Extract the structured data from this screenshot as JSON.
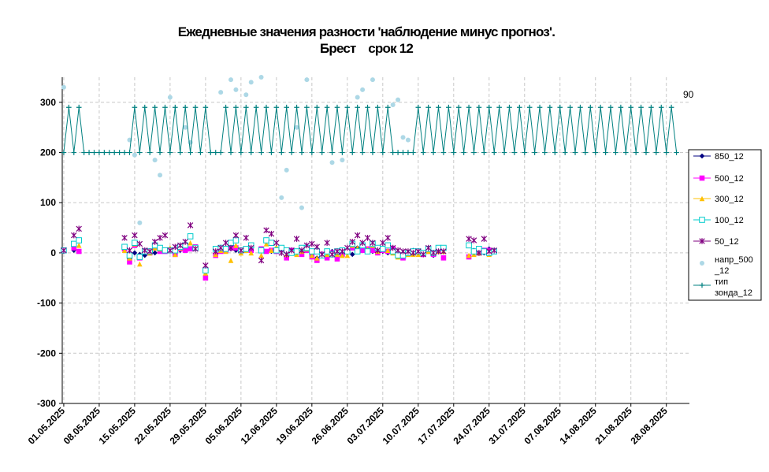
{
  "title_line1": "Ежедневные значения разности 'наблюдение минус прогноз'.",
  "title_line2": "Брест    срок 12",
  "chart_data": {
    "type": "scatter",
    "ylim": [
      -300,
      350
    ],
    "yticks": [
      -300,
      -200,
      -100,
      0,
      100,
      200,
      300
    ],
    "ytick_labels": [
      "-300",
      "-200",
      "-100",
      "0",
      "100",
      "200",
      "300"
    ],
    "xticks": [
      0,
      7,
      14,
      21,
      28,
      35,
      42,
      49,
      56,
      63,
      70,
      77,
      84,
      91,
      98,
      105,
      112,
      119
    ],
    "xtick_labels": [
      "01.05.2025",
      "08.05.2025",
      "15.05.2025",
      "22.05.2025",
      "29.05.2025",
      "05.06.2025",
      "12.06.2025",
      "19.06.2025",
      "26.06.2025",
      "03.07.2025",
      "10.07.2025",
      "17.07.2025",
      "24.07.2025",
      "31.07.2025",
      "07.08.2025",
      "14.08.2025",
      "21.08.2025",
      "28.08.2025"
    ],
    "xlim": [
      0,
      122
    ],
    "grid": true,
    "legend_position": "right",
    "annotation": "90",
    "series": [
      {
        "name": "850_12",
        "color": "#000080",
        "marker": "diamond",
        "values": [
          3,
          null,
          5,
          null,
          null,
          null,
          null,
          null,
          null,
          null,
          null,
          null,
          5,
          -12,
          0,
          -3,
          -5,
          0,
          0,
          8,
          null,
          5,
          -3,
          5,
          10,
          8,
          8,
          null,
          -48,
          null,
          -3,
          5,
          5,
          8,
          5,
          3,
          5,
          5,
          null,
          null,
          null,
          3,
          5,
          10,
          -10,
          3,
          3,
          5,
          8,
          -5,
          -10,
          -3,
          0,
          3,
          -3,
          0,
          3,
          -3,
          10,
          5,
          8,
          3,
          0,
          3,
          0,
          10,
          -5,
          -3,
          0,
          5,
          3,
          -3,
          5,
          -5,
          3,
          -10,
          null,
          null,
          null,
          null,
          -8,
          5,
          3,
          0,
          8,
          5,
          null,
          null,
          null,
          null,
          null,
          null,
          null,
          null,
          null,
          null,
          null,
          null,
          null,
          null,
          null,
          null,
          null,
          null,
          null,
          null,
          null,
          null,
          null,
          null,
          null,
          null,
          null,
          null,
          null,
          null,
          null
        ]
      },
      {
        "name": "500_12",
        "color": "#FF00FF",
        "marker": "square",
        "values": [
          5,
          null,
          10,
          3,
          null,
          null,
          null,
          null,
          null,
          null,
          null,
          null,
          8,
          -18,
          15,
          -10,
          3,
          0,
          10,
          3,
          3,
          5,
          -3,
          8,
          5,
          8,
          12,
          null,
          -50,
          null,
          -5,
          3,
          5,
          10,
          10,
          5,
          8,
          5,
          null,
          8,
          3,
          5,
          3,
          8,
          -10,
          5,
          3,
          -3,
          5,
          -8,
          -15,
          -3,
          -10,
          0,
          -12,
          -3,
          3,
          10,
          3,
          5,
          8,
          5,
          0,
          5,
          3,
          8,
          -5,
          -10,
          0,
          3,
          3,
          -3,
          3,
          -3,
          3,
          -10,
          null,
          null,
          null,
          null,
          -8,
          3,
          0,
          5,
          5,
          3,
          null,
          null,
          null,
          null,
          null,
          null,
          null,
          null,
          null,
          null,
          null,
          null,
          null,
          null,
          null,
          null,
          null,
          null,
          null,
          null,
          null,
          null,
          null,
          null,
          null,
          null,
          null,
          null,
          null,
          null,
          null
        ]
      },
      {
        "name": "300_12",
        "color": "#FFC000",
        "marker": "triangle",
        "values": [
          5,
          null,
          18,
          15,
          null,
          null,
          null,
          null,
          null,
          null,
          null,
          null,
          5,
          -10,
          18,
          -22,
          3,
          0,
          10,
          8,
          5,
          10,
          -3,
          10,
          15,
          20,
          10,
          null,
          -40,
          null,
          -3,
          5,
          3,
          -15,
          15,
          0,
          5,
          0,
          null,
          -5,
          18,
          5,
          12,
          10,
          -3,
          3,
          -3,
          3,
          8,
          -5,
          -10,
          -5,
          -3,
          -3,
          -3,
          -5,
          -5,
          15,
          10,
          15,
          8,
          15,
          3,
          10,
          5,
          0,
          -8,
          -5,
          -3,
          -3,
          -3,
          0,
          3,
          0,
          3,
          3,
          null,
          null,
          null,
          null,
          -5,
          -3,
          0,
          3,
          -3,
          3,
          null,
          null,
          null,
          null,
          null,
          null,
          null,
          null,
          null,
          null,
          null,
          null,
          null,
          null,
          null,
          null,
          null,
          null,
          null,
          null,
          null,
          null,
          null,
          null,
          null,
          null,
          null,
          null,
          null,
          null,
          null
        ]
      },
      {
        "name": "100_12",
        "color": "#00CCCC",
        "marker": "hollow-square",
        "values": [
          5,
          null,
          18,
          25,
          null,
          null,
          null,
          null,
          null,
          null,
          null,
          null,
          12,
          -5,
          20,
          -8,
          3,
          3,
          15,
          10,
          5,
          5,
          5,
          12,
          15,
          33,
          10,
          null,
          -35,
          null,
          8,
          10,
          8,
          20,
          25,
          5,
          8,
          15,
          null,
          5,
          25,
          20,
          5,
          10,
          5,
          0,
          3,
          10,
          10,
          3,
          3,
          -5,
          3,
          -3,
          3,
          5,
          3,
          18,
          3,
          15,
          3,
          18,
          10,
          8,
          15,
          3,
          -5,
          -5,
          0,
          3,
          3,
          0,
          8,
          0,
          10,
          10,
          null,
          null,
          null,
          null,
          15,
          3,
          8,
          3,
          0,
          3,
          null,
          null,
          null,
          null,
          null,
          null,
          null,
          null,
          null,
          null,
          null,
          null,
          null,
          null,
          null,
          null,
          null,
          null,
          null,
          null,
          null,
          null,
          null,
          null,
          null,
          null,
          null,
          null,
          null,
          null,
          null
        ]
      },
      {
        "name": "50_12",
        "color": "#800080",
        "marker": "star",
        "values": [
          5,
          null,
          35,
          48,
          null,
          null,
          null,
          null,
          null,
          null,
          null,
          null,
          30,
          5,
          35,
          18,
          5,
          3,
          22,
          30,
          35,
          5,
          12,
          15,
          22,
          55,
          8,
          null,
          -25,
          null,
          3,
          10,
          20,
          10,
          35,
          5,
          30,
          10,
          null,
          -15,
          45,
          38,
          20,
          0,
          -3,
          5,
          28,
          5,
          15,
          18,
          12,
          -3,
          20,
          -3,
          3,
          3,
          10,
          22,
          35,
          20,
          30,
          20,
          5,
          20,
          30,
          10,
          5,
          3,
          3,
          0,
          3,
          -3,
          10,
          0,
          3,
          3,
          null,
          null,
          null,
          null,
          28,
          25,
          0,
          28,
          3,
          5,
          null,
          null,
          null,
          null,
          null,
          null,
          null,
          null,
          null,
          null,
          null,
          null,
          null,
          null,
          null,
          null,
          null,
          null,
          null,
          null,
          null,
          null,
          null,
          null,
          null,
          null,
          null,
          null,
          null,
          null,
          null
        ]
      },
      {
        "name": "напр_500 _12",
        "color": "#ADD8E6",
        "marker": "circle",
        "values": [
          330,
          null,
          null,
          null,
          null,
          null,
          null,
          null,
          null,
          null,
          null,
          null,
          null,
          225,
          195,
          60,
          null,
          null,
          185,
          155,
          null,
          310,
          null,
          null,
          250,
          220,
          null,
          null,
          null,
          null,
          null,
          320,
          null,
          345,
          325,
          null,
          315,
          340,
          null,
          350,
          null,
          null,
          null,
          110,
          165,
          null,
          250,
          90,
          345,
          null,
          null,
          null,
          null,
          180,
          null,
          185,
          null,
          null,
          310,
          325,
          null,
          345,
          null,
          null,
          null,
          295,
          305,
          230,
          225,
          null,
          null,
          null,
          null,
          null,
          null,
          null,
          null,
          null,
          null,
          null,
          null,
          null,
          null,
          null,
          null,
          null,
          null,
          null,
          null,
          null,
          null,
          null,
          null,
          null,
          null,
          null,
          null,
          null,
          null,
          null,
          null,
          null,
          null,
          null,
          null,
          null,
          null,
          null,
          null,
          null,
          null,
          null,
          null,
          null,
          null,
          null,
          null,
          null,
          null,
          null,
          null
        ]
      },
      {
        "name": "тип зонда_12",
        "color": "#008080",
        "marker": "plus",
        "values": [
          200,
          290,
          200,
          290,
          200,
          200,
          200,
          200,
          200,
          200,
          200,
          200,
          200,
          200,
          290,
          200,
          290,
          200,
          290,
          200,
          290,
          200,
          290,
          200,
          290,
          200,
          290,
          200,
          290,
          200,
          200,
          200,
          290,
          200,
          290,
          200,
          290,
          200,
          290,
          200,
          290,
          200,
          290,
          200,
          290,
          200,
          290,
          200,
          290,
          200,
          290,
          200,
          290,
          200,
          290,
          200,
          290,
          200,
          290,
          200,
          290,
          200,
          290,
          200,
          290,
          200,
          200,
          200,
          200,
          200,
          290,
          200,
          290,
          200,
          290,
          200,
          290,
          200,
          290,
          200,
          290,
          200,
          290,
          200,
          290,
          200,
          290,
          200,
          290,
          200,
          290,
          200,
          290,
          200,
          290,
          200,
          290,
          200,
          290,
          200,
          290,
          200,
          290,
          200,
          290,
          200,
          290,
          200,
          290,
          200,
          290,
          200,
          290,
          200,
          290,
          200,
          290,
          200,
          290,
          200,
          290,
          200
        ]
      }
    ]
  }
}
